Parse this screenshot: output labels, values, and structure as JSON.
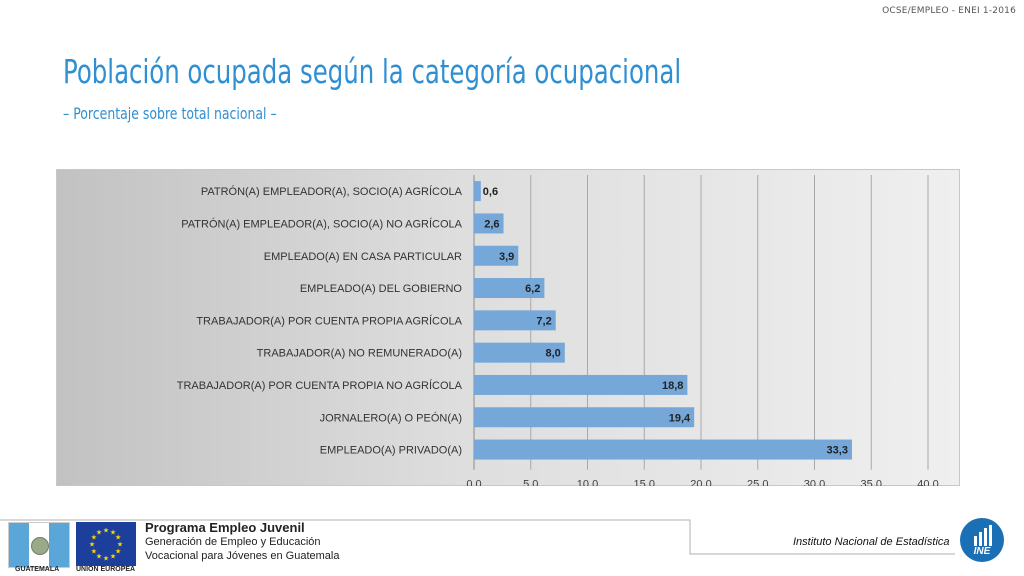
{
  "header": {
    "tag": "OCSE/EMPLEO - ENEI 1-2016"
  },
  "title": "Población ocupada según la categoría ocupacional",
  "subtitle": "– Porcentaje sobre total nacional –",
  "colors": {
    "bar": "#75a7d9",
    "title": "#2f8fd3",
    "panel_dark": "#c4c4c4",
    "panel_light": "#ececec"
  },
  "chart_data": {
    "type": "bar",
    "orientation": "horizontal",
    "categories": [
      "PATRÓN(A) EMPLEADOR(A), SOCIO(A) AGRÍCOLA",
      "PATRÓN(A) EMPLEADOR(A), SOCIO(A) NO AGRÍCOLA",
      "EMPLEADO(A) EN CASA PARTICULAR",
      "EMPLEADO(A) DEL GOBIERNO",
      "TRABAJADOR(A) POR CUENTA PROPIA AGRÍCOLA",
      "TRABAJADOR(A) NO REMUNERADO(A)",
      "TRABAJADOR(A) POR CUENTA PROPIA NO AGRÍCOLA",
      "JORNALERO(A) O PEÓN(A)",
      "EMPLEADO(A) PRIVADO(A)"
    ],
    "values": [
      0.6,
      2.6,
      3.9,
      6.2,
      7.2,
      8.0,
      18.8,
      19.4,
      33.3
    ],
    "value_labels": [
      "0,6",
      "2,6",
      "3,9",
      "6,2",
      "7,2",
      "8,0",
      "18,8",
      "19,4",
      "33,3"
    ],
    "xlim": [
      0,
      40
    ],
    "xticks": [
      0,
      5,
      10,
      15,
      20,
      25,
      30,
      35,
      40
    ],
    "xtick_labels": [
      "0,0",
      "5,0",
      "10,0",
      "15,0",
      "20,0",
      "25,0",
      "30,0",
      "35,0",
      "40,0"
    ],
    "grid": "vertical",
    "legend": "none"
  },
  "footer": {
    "flag_gt_label": "GUATEMALA",
    "flag_eu_label": "UNIÓN EUROPEA",
    "program_name": "Programa Empleo Juvenil",
    "program_line1": "Generación de Empleo y Educación",
    "program_line2": "Vocacional para Jóvenes en Guatemala",
    "institute": "Instituto Nacional de Estadística",
    "ine_logo_text": "INE"
  }
}
